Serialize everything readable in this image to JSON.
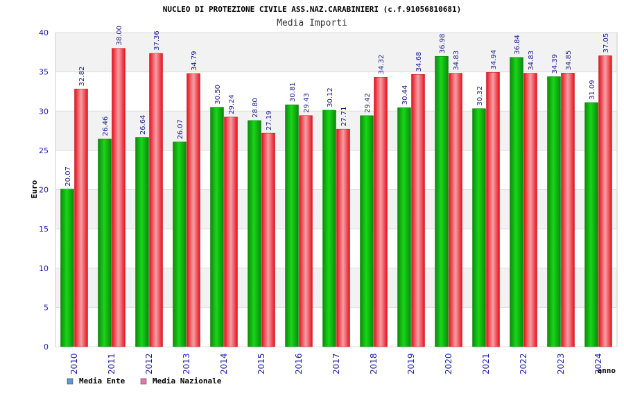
{
  "chart_data": {
    "type": "bar",
    "title": "NUCLEO DI PROTEZIONE CIVILE ASS.NAZ.CARABINIERI (c.f.91056810681)",
    "subtitle": "Media Importi",
    "ylabel": "Euro",
    "xlabel": "anno",
    "ylim": [
      0,
      40
    ],
    "yticks": [
      0,
      5,
      10,
      15,
      20,
      25,
      30,
      35,
      40
    ],
    "categories": [
      "2010",
      "2011",
      "2012",
      "2013",
      "2014",
      "2015",
      "2016",
      "2017",
      "2018",
      "2019",
      "2020",
      "2021",
      "2022",
      "2023",
      "2024"
    ],
    "series": [
      {
        "name": "Media Ente",
        "color": "#12b812",
        "legend_color": "#5b9bd5",
        "values": [
          20.07,
          26.46,
          26.64,
          26.07,
          30.5,
          28.8,
          30.81,
          30.12,
          29.42,
          30.44,
          36.98,
          30.32,
          36.84,
          34.39,
          31.09
        ],
        "labels": [
          "20.07",
          "26.46",
          "26.64",
          "26.07",
          "30.50",
          "28.80",
          "30.81",
          "30.12",
          "29.42",
          "30.44",
          "36.98",
          "30.32",
          "36.84",
          "34.39",
          "31.09"
        ]
      },
      {
        "name": "Media Nazionale",
        "color": "#e8202a",
        "legend_color": "#e07ba8",
        "values": [
          32.82,
          38.0,
          37.36,
          34.79,
          29.24,
          27.19,
          29.43,
          27.71,
          34.32,
          34.68,
          34.83,
          34.94,
          34.83,
          34.85,
          37.05
        ],
        "labels": [
          "32.82",
          "38.00",
          "37.36",
          "34.79",
          "29.24",
          "27.19",
          "29.43",
          "27.71",
          "34.32",
          "34.68",
          "34.83",
          "34.94",
          "34.83",
          "34.85",
          "37.05"
        ]
      }
    ],
    "grid": true,
    "legend_position": "bottom-left"
  }
}
